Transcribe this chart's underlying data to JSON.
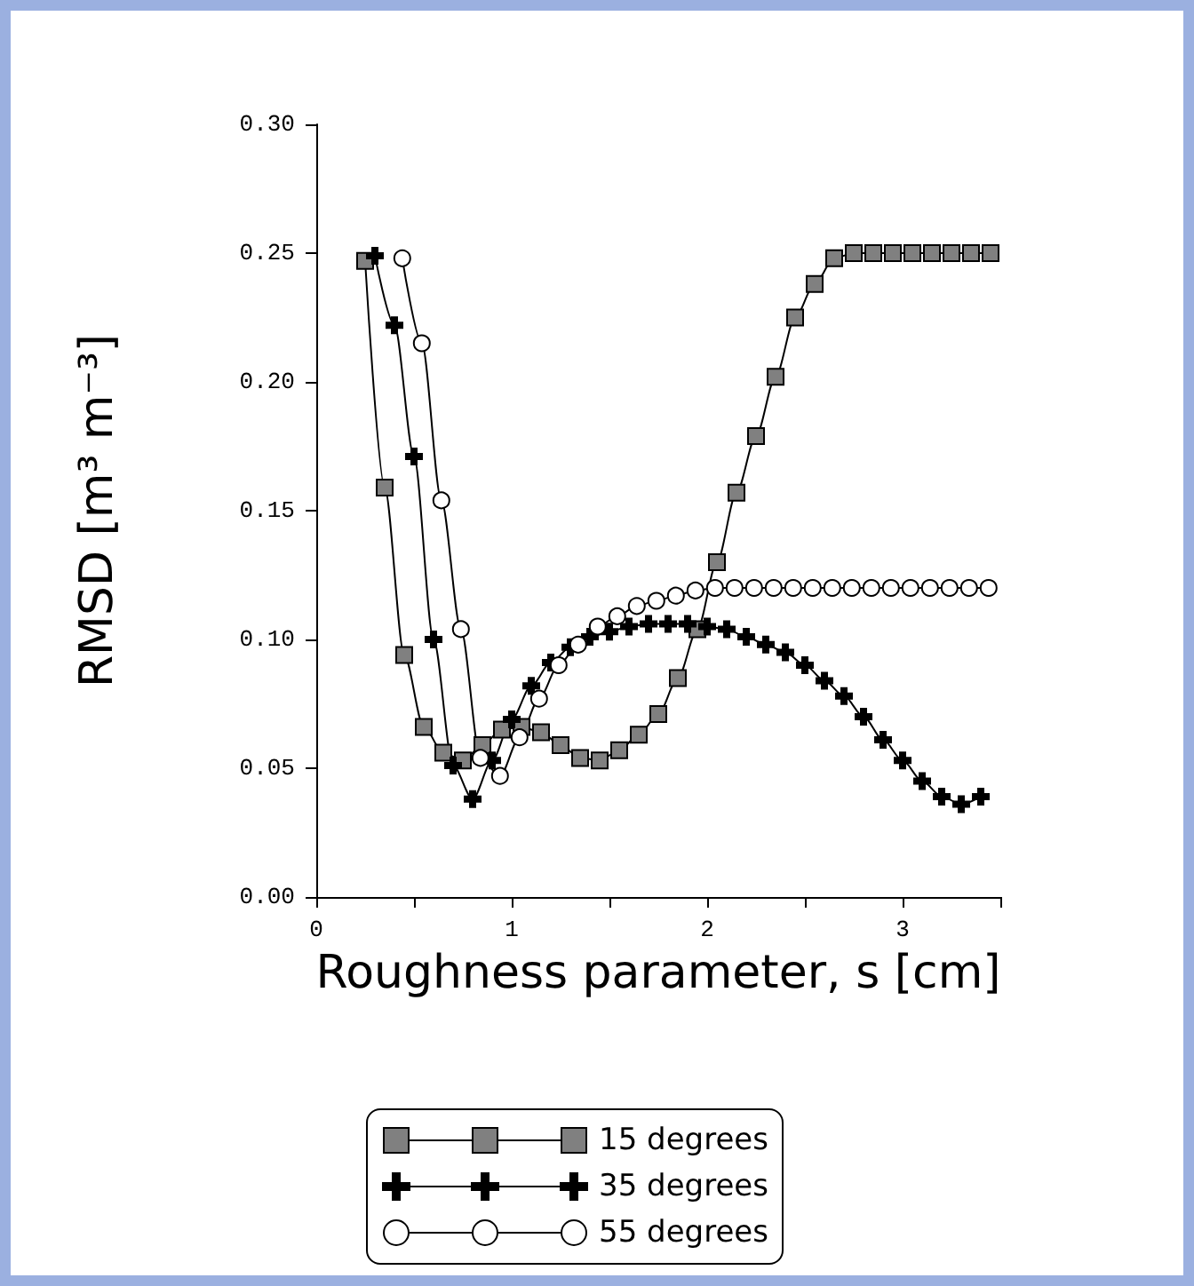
{
  "chart_data": {
    "type": "line",
    "xlabel": "Roughness parameter, s [cm]",
    "ylabel": "RMSD [m³ m⁻³]",
    "xlim": [
      0,
      3.5
    ],
    "xticks": [
      0,
      {
        "value": 0.5,
        "label": null
      },
      1,
      {
        "value": 1.5,
        "label": null
      },
      2,
      {
        "value": 2.5,
        "label": null
      },
      3,
      {
        "value": 3.5,
        "label": null
      }
    ],
    "ylim": [
      0,
      0.3
    ],
    "yticks": [
      {
        "value": 0,
        "label": "0.00"
      },
      {
        "value": 0.05,
        "label": "0.05"
      },
      {
        "value": 0.1,
        "label": "0.10"
      },
      {
        "value": 0.15,
        "label": "0.15"
      },
      {
        "value": 0.2,
        "label": "0.20"
      },
      {
        "value": 0.25,
        "label": "0.25"
      },
      {
        "value": 0.3,
        "label": "0.30"
      }
    ],
    "grid": false,
    "legend": "bottom",
    "series": [
      {
        "name": "15 degrees",
        "color": "#808080",
        "marker": "square",
        "x": [
          0.25,
          0.35,
          0.45,
          0.55,
          0.65,
          0.75,
          0.85,
          0.95,
          1.05,
          1.15,
          1.25,
          1.35,
          1.45,
          1.55,
          1.65,
          1.75,
          1.85,
          1.95,
          2.05,
          2.15,
          2.25,
          2.35,
          2.45,
          2.55,
          2.65,
          2.75,
          2.85,
          2.95,
          3.05,
          3.15,
          3.25,
          3.35,
          3.45
        ],
        "values": [
          0.247,
          0.159,
          0.094,
          0.066,
          0.056,
          0.053,
          0.059,
          0.065,
          0.066,
          0.064,
          0.059,
          0.054,
          0.053,
          0.057,
          0.063,
          0.071,
          0.085,
          0.104,
          0.13,
          0.157,
          0.179,
          0.202,
          0.225,
          0.238,
          0.248,
          0.25,
          0.25,
          0.25,
          0.25,
          0.25,
          0.25,
          0.25,
          0.25
        ]
      },
      {
        "name": "35 degrees",
        "color": "#000000",
        "marker": "cross",
        "x": [
          0.3,
          0.4,
          0.5,
          0.6,
          0.7,
          0.8,
          0.9,
          1.0,
          1.1,
          1.2,
          1.3,
          1.4,
          1.5,
          1.6,
          1.7,
          1.8,
          1.9,
          2.0,
          2.1,
          2.2,
          2.3,
          2.4,
          2.5,
          2.6,
          2.7,
          2.8,
          2.9,
          3.0,
          3.1,
          3.2,
          3.3,
          3.4
        ],
        "values": [
          0.249,
          0.222,
          0.171,
          0.1,
          0.051,
          0.038,
          0.053,
          0.069,
          0.082,
          0.091,
          0.097,
          0.101,
          0.103,
          0.105,
          0.106,
          0.106,
          0.106,
          0.105,
          0.104,
          0.101,
          0.098,
          0.095,
          0.09,
          0.084,
          0.078,
          0.07,
          0.061,
          0.053,
          0.045,
          0.039,
          0.036,
          0.039
        ]
      },
      {
        "name": "55 degrees",
        "color": "#ffffff",
        "marker": "circle",
        "x": [
          0.44,
          0.54,
          0.64,
          0.74,
          0.84,
          0.94,
          1.04,
          1.14,
          1.24,
          1.34,
          1.44,
          1.54,
          1.64,
          1.74,
          1.84,
          1.94,
          2.04,
          2.14,
          2.24,
          2.34,
          2.44,
          2.54,
          2.64,
          2.74,
          2.84,
          2.94,
          3.04,
          3.14,
          3.24,
          3.34,
          3.44
        ],
        "values": [
          0.248,
          0.215,
          0.154,
          0.104,
          0.054,
          0.047,
          0.062,
          0.077,
          0.09,
          0.098,
          0.105,
          0.109,
          0.113,
          0.115,
          0.117,
          0.119,
          0.12,
          0.12,
          0.12,
          0.12,
          0.12,
          0.12,
          0.12,
          0.12,
          0.12,
          0.12,
          0.12,
          0.12,
          0.12,
          0.12,
          0.12
        ]
      }
    ]
  }
}
